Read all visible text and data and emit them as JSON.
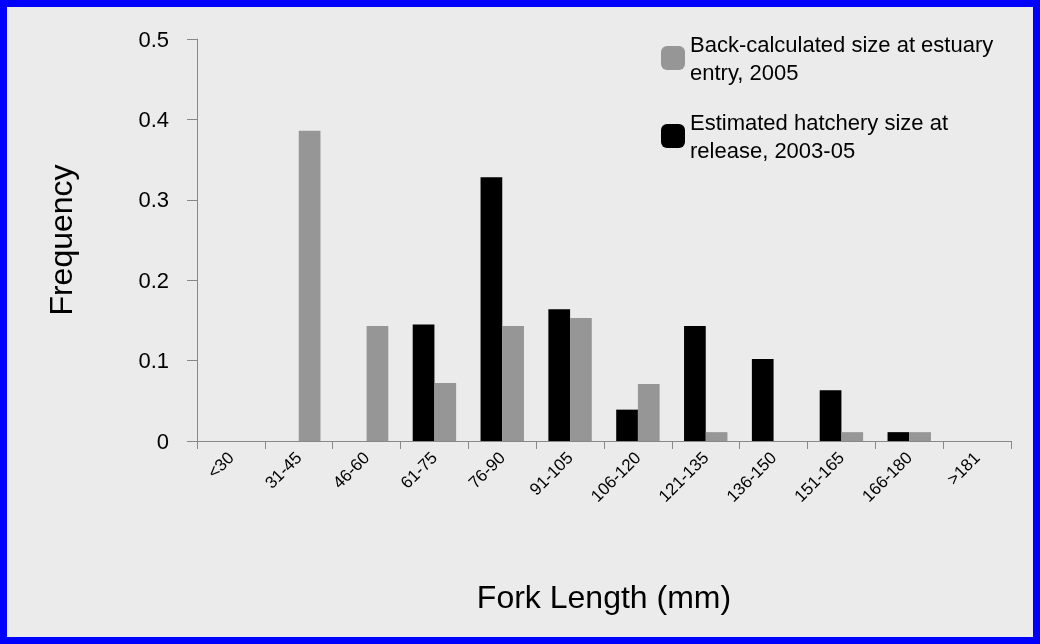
{
  "chart_data": {
    "type": "bar",
    "xlabel": "Fork Length (mm)",
    "ylabel": "Frequency",
    "categories": [
      "<30",
      "31-45",
      "46-60",
      "61-75",
      "76-90",
      "91-105",
      "106-120",
      "121-135",
      "136-150",
      "151-165",
      "166-180",
      ">181"
    ],
    "series": [
      {
        "name": "Back-calculated size at estuary entry, 2005",
        "color": "#969696",
        "values": [
          0,
          0.386,
          0.143,
          0.072,
          0.143,
          0.153,
          0.071,
          0.011,
          0,
          0.011,
          0.011,
          0
        ]
      },
      {
        "name": "Estimated hatchery size at release, 2003-05",
        "color": "#000000",
        "values": [
          0,
          0,
          0,
          0.145,
          0.328,
          0.164,
          0.039,
          0.143,
          0.102,
          0.063,
          0.011,
          0
        ]
      }
    ],
    "ylim": [
      0,
      0.5
    ],
    "yticks": [
      0,
      0.1,
      0.2,
      0.3,
      0.4,
      0.5
    ],
    "grid": false,
    "legend": "top right"
  }
}
